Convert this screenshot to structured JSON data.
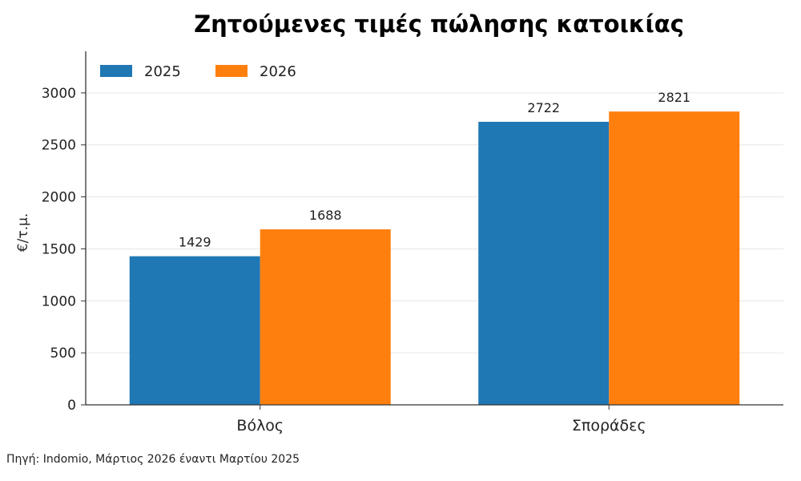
{
  "chart_data": {
    "type": "bar",
    "title": "Ζητούμενες τιμές πώλησης κατοικίας",
    "ylabel": "€/τ.μ.",
    "xlabel": "",
    "categories": [
      "Βόλος",
      "Σποράδες"
    ],
    "series": [
      {
        "name": "2025",
        "values": [
          1429,
          2722
        ],
        "color": "#1f77b4"
      },
      {
        "name": "2026",
        "values": [
          1688,
          2821
        ],
        "color": "#ff7f0e"
      }
    ],
    "ylim": [
      0,
      3400
    ],
    "yticks": [
      0,
      500,
      1000,
      1500,
      2000,
      2500,
      3000
    ],
    "grid": "horizontal",
    "legend": "top-left",
    "data_labels": true
  },
  "footer": {
    "source": "Πηγή: Indomio, Μάρτιος 2026 έναντι Μαρτίου 2025"
  }
}
